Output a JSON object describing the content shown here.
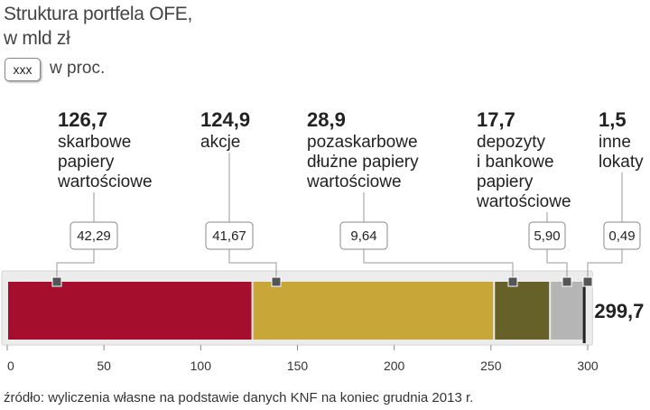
{
  "title_line1": "Struktura portfela OFE,",
  "title_line2": "w mld zł",
  "legend": {
    "box_text": "xxx",
    "text": "w proc."
  },
  "source": "źródło: wyliczenia własne na podstawie danych KNF na koniec grudnia 2013 r.",
  "chart_data": {
    "type": "bar",
    "orientation": "horizontal-stacked",
    "total": 299.7,
    "total_label": "299,7",
    "xlim": [
      0,
      300
    ],
    "xticks": [
      0,
      50,
      100,
      150,
      200,
      250,
      300
    ],
    "xtick_labels": [
      "0",
      "50",
      "100",
      "150",
      "200",
      "250",
      "300"
    ],
    "segments": [
      {
        "value": 126.7,
        "value_label": "126,7",
        "label_lines": [
          "skarbowe",
          "papiery",
          "wartościowe"
        ],
        "percent": 42.29,
        "percent_label": "42,29",
        "color": "#a50f2d"
      },
      {
        "value": 124.9,
        "value_label": "124,9",
        "label_lines": [
          "akcje"
        ],
        "percent": 41.67,
        "percent_label": "41,67",
        "color": "#c8a637"
      },
      {
        "value": 28.9,
        "value_label": "28,9",
        "label_lines": [
          "pozaskarbowe",
          "dłużne papiery",
          "wartościowe"
        ],
        "percent": 9.64,
        "percent_label": "9,64",
        "color": "#656128"
      },
      {
        "value": 17.7,
        "value_label": "17,7",
        "label_lines": [
          "depozyty",
          "i bankowe",
          "papiery",
          "wartościowe"
        ],
        "percent": 5.9,
        "percent_label": "5,90",
        "color": "#b5b5b5"
      },
      {
        "value": 1.5,
        "value_label": "1,5",
        "label_lines": [
          "inne",
          "lokaty"
        ],
        "percent": 0.49,
        "percent_label": "0,49",
        "color": "#222222"
      }
    ],
    "colors": {
      "axis": "#888888",
      "leader": "#999999",
      "marker": "#555555",
      "frame": "#d4d4d4"
    }
  }
}
